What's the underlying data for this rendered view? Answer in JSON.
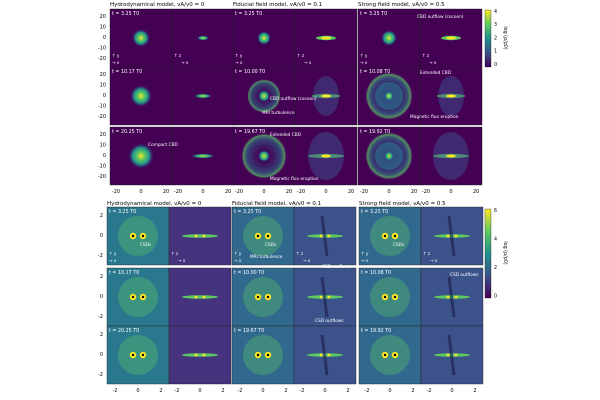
{
  "top": {
    "titles": [
      "Hydrodynamical model, v_A/v_0 = 0",
      "Fiducial field model, v_A/v_0 = 0.1",
      "Strong field model, v_A/v_0 = 0.5"
    ],
    "times": [
      [
        "t = 3.25 T_0",
        "t = 10.17 T_0",
        "t = 20.25 T_0"
      ],
      [
        "t = 3.25 T_0",
        "t = 10.00 T_0",
        "t = 19.67 T_0"
      ],
      [
        "t = 3.25 T_0",
        "t = 10.08 T_0",
        "t = 19.92 T_0"
      ]
    ],
    "annotations": [
      "Compact CBD",
      "CBD outflow (cocoon)",
      "MRI turbulence",
      "Extended CBD",
      "Magnetic flux eruption",
      "CBD outflow (cocoon)",
      "Extended CBD",
      "Magnetic flux eruption"
    ],
    "y_ticks": [
      "20",
      "10",
      "0",
      "-10",
      "-20"
    ],
    "x_ticks": [
      "-20",
      "0",
      "20",
      "-20",
      "0",
      "20"
    ],
    "colorbar": {
      "label": "log (ρ/ρ_0)",
      "ticks": [
        "4",
        "3",
        "2",
        "1",
        "0"
      ]
    },
    "axis_labels": {
      "x": "x",
      "y": "y",
      "z": "z"
    }
  },
  "bottom": {
    "titles": [
      "Hydrodynamical model, v_A/v_0 = 0",
      "Fiducial field model, v_A/v_0 = 0.1",
      "Strong field model, v_A/v_0 = 0.5"
    ],
    "times": [
      [
        "t = 3.25 T_0",
        "t = 10.17 T_0",
        "t = 20.25 T_0"
      ],
      [
        "t = 3.25 T_0",
        "t = 10.00 T_0",
        "t = 19.67 T_0"
      ],
      [
        "t = 3.25 T_0",
        "t = 10.08 T_0",
        "t = 19.92 T_0"
      ]
    ],
    "annotations": [
      "CSDs",
      "CSDs",
      "MRI turbulence",
      "CSD outflows",
      "CSD outflows",
      "CSDs",
      "CSD outflows"
    ],
    "y_ticks": [
      "2",
      "0",
      "-2"
    ],
    "x_ticks": [
      "-2",
      "0",
      "2",
      "-2",
      "0",
      "2"
    ],
    "colorbar": {
      "label": "log (ρ/ρ_0)",
      "ticks": [
        "6",
        "4",
        "2",
        "0"
      ]
    },
    "axis_labels": {
      "x": "x",
      "y": "y",
      "z": "z"
    }
  },
  "colors": {
    "dark": "#440154",
    "mid": "#31688e",
    "teal": "#21918c",
    "green": "#5ec962",
    "yellow": "#fde725"
  }
}
